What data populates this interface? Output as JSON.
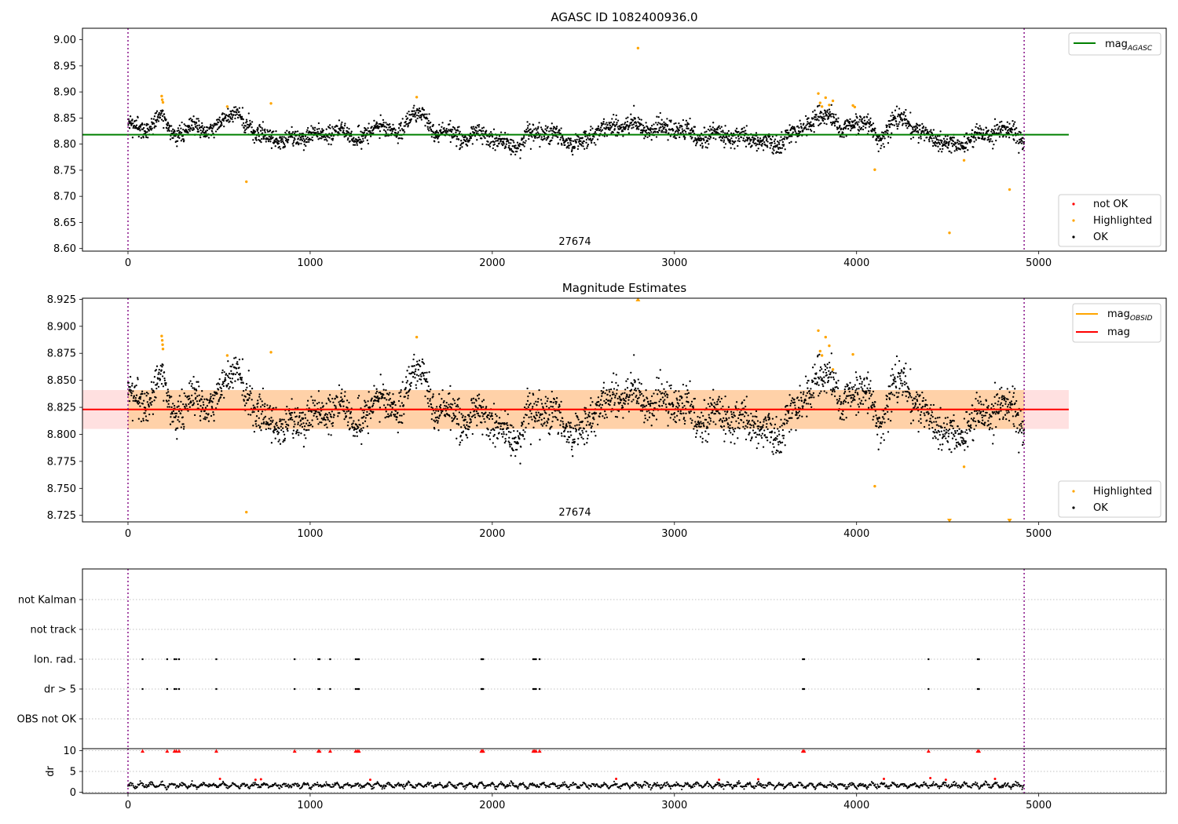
{
  "chart_data": [
    {
      "type": "scatter",
      "title": "AGASC ID 1082400936.0",
      "xlim": [
        -250,
        5700
      ],
      "ylim": [
        8.595,
        9.022
      ],
      "x_ticks": [
        "0",
        "1000",
        "2000",
        "3000",
        "4000",
        "5000"
      ],
      "y_ticks": [
        "8.60",
        "8.65",
        "8.70",
        "8.75",
        "8.80",
        "8.85",
        "8.90",
        "8.95",
        "9.00"
      ],
      "obsid_label": "27674",
      "obsid_bounds": [
        0,
        4920
      ],
      "grid": false,
      "reference_line": {
        "name": "mag",
        "subscript": "AGASC",
        "value": 8.818,
        "x_range": [
          -250,
          5165
        ],
        "color": "#008000"
      },
      "legend_top": {
        "placement": "top-right",
        "entries": [
          {
            "label": "mag",
            "sub": "AGASC",
            "kind": "line",
            "color": "#008000"
          }
        ]
      },
      "legend_bottom": {
        "placement": "bottom-right",
        "entries": [
          {
            "label": "not OK",
            "kind": "marker",
            "color": "#ff0000"
          },
          {
            "label": "Highlighted",
            "kind": "marker",
            "color": "#ffa500"
          },
          {
            "label": "OK",
            "kind": "marker",
            "color": "#000000"
          }
        ]
      },
      "ok_series": {
        "name": "OK",
        "color": "#000000",
        "x_range": [
          0,
          4920
        ],
        "profile_x": [
          0,
          100,
          180,
          240,
          300,
          380,
          460,
          540,
          600,
          660,
          720,
          800,
          900,
          1000,
          1080,
          1160,
          1240,
          1320,
          1400,
          1480,
          1560,
          1620,
          1680,
          1760,
          1840,
          1920,
          2000,
          2080,
          2140,
          2200,
          2280,
          2360,
          2440,
          2520,
          2600,
          2680,
          2760,
          2840,
          2920,
          3000,
          3080,
          3160,
          3240,
          3320,
          3400,
          3480,
          3560,
          3640,
          3720,
          3800,
          3860,
          3920,
          4000,
          4060,
          4120,
          4200,
          4260,
          4320,
          4400,
          4480,
          4560,
          4640,
          4720,
          4800,
          4860,
          4920
        ],
        "profile_y": [
          8.835,
          8.828,
          8.855,
          8.822,
          8.818,
          8.838,
          8.82,
          8.862,
          8.855,
          8.83,
          8.822,
          8.81,
          8.808,
          8.82,
          8.815,
          8.832,
          8.808,
          8.82,
          8.84,
          8.815,
          8.86,
          8.855,
          8.82,
          8.825,
          8.808,
          8.82,
          8.812,
          8.8,
          8.795,
          8.815,
          8.825,
          8.815,
          8.8,
          8.81,
          8.828,
          8.835,
          8.838,
          8.828,
          8.83,
          8.828,
          8.82,
          8.812,
          8.82,
          8.812,
          8.815,
          8.805,
          8.8,
          8.818,
          8.838,
          8.85,
          8.86,
          8.82,
          8.848,
          8.838,
          8.805,
          8.845,
          8.85,
          8.825,
          8.815,
          8.8,
          8.8,
          8.812,
          8.818,
          8.822,
          8.83,
          8.805
        ],
        "spread": 0.009
      },
      "highlighted": {
        "name": "Highlighted",
        "color": "#ffa500",
        "points": [
          [
            185,
            8.892
          ],
          [
            188,
            8.885
          ],
          [
            192,
            8.88
          ],
          [
            545,
            8.872
          ],
          [
            650,
            8.728
          ],
          [
            785,
            8.878
          ],
          [
            1585,
            8.89
          ],
          [
            2800,
            8.984
          ],
          [
            3790,
            8.897
          ],
          [
            3800,
            8.879
          ],
          [
            3810,
            8.872
          ],
          [
            3830,
            8.889
          ],
          [
            3850,
            8.875
          ],
          [
            3870,
            8.883
          ],
          [
            3980,
            8.874
          ],
          [
            3990,
            8.871
          ],
          [
            4100,
            8.751
          ],
          [
            4510,
            8.63
          ],
          [
            4590,
            8.769
          ],
          [
            4840,
            8.713
          ]
        ]
      }
    },
    {
      "type": "scatter",
      "title": "Magnitude Estimates",
      "xlim": [
        -250,
        5700
      ],
      "ylim": [
        8.719,
        8.926
      ],
      "x_ticks": [
        "0",
        "1000",
        "2000",
        "3000",
        "4000",
        "5000"
      ],
      "y_ticks": [
        "8.725",
        "8.750",
        "8.775",
        "8.800",
        "8.825",
        "8.850",
        "8.875",
        "8.900",
        "8.925"
      ],
      "obsid_label": "27674",
      "obsid_bounds": [
        0,
        4920
      ],
      "grid": false,
      "mag_line": {
        "name": "mag",
        "value": 8.823,
        "x_range": [
          -250,
          5165
        ],
        "color": "#ff0000"
      },
      "mag_band": {
        "low": 8.805,
        "high": 8.841,
        "x_range": [
          -250,
          5165
        ],
        "color": "#ff0000"
      },
      "obsid_mag": {
        "name": "mag",
        "subscript": "OBSID",
        "value": 8.823,
        "low": 8.805,
        "high": 8.841,
        "x_range": [
          0,
          4920
        ],
        "color": "#ffa500"
      },
      "legend_top": {
        "placement": "top-right",
        "entries": [
          {
            "label": "mag",
            "sub": "OBSID",
            "kind": "line",
            "color": "#ffa500"
          },
          {
            "label": "mag",
            "sub": "",
            "kind": "line",
            "color": "#ff0000"
          }
        ]
      },
      "legend_bottom": {
        "placement": "bottom-right",
        "entries": [
          {
            "label": "Highlighted",
            "kind": "marker",
            "color": "#ffa500"
          },
          {
            "label": "OK",
            "kind": "marker",
            "color": "#000000"
          }
        ]
      },
      "ok_series": {
        "name": "OK",
        "color": "#000000",
        "x_range": [
          0,
          4920
        ],
        "profile_x": [
          0,
          100,
          180,
          240,
          300,
          380,
          460,
          540,
          600,
          660,
          720,
          800,
          900,
          1000,
          1080,
          1160,
          1240,
          1320,
          1400,
          1480,
          1560,
          1620,
          1680,
          1760,
          1840,
          1920,
          2000,
          2080,
          2140,
          2200,
          2280,
          2360,
          2440,
          2520,
          2600,
          2680,
          2760,
          2840,
          2920,
          3000,
          3080,
          3160,
          3240,
          3320,
          3400,
          3480,
          3560,
          3640,
          3720,
          3800,
          3860,
          3920,
          4000,
          4060,
          4120,
          4200,
          4260,
          4320,
          4400,
          4480,
          4560,
          4640,
          4720,
          4800,
          4860,
          4920
        ],
        "profile_y": [
          8.835,
          8.828,
          8.855,
          8.822,
          8.818,
          8.838,
          8.82,
          8.862,
          8.855,
          8.83,
          8.822,
          8.81,
          8.808,
          8.82,
          8.815,
          8.832,
          8.808,
          8.82,
          8.84,
          8.815,
          8.86,
          8.855,
          8.82,
          8.825,
          8.808,
          8.82,
          8.812,
          8.8,
          8.795,
          8.815,
          8.825,
          8.815,
          8.8,
          8.81,
          8.828,
          8.835,
          8.838,
          8.828,
          8.83,
          8.828,
          8.82,
          8.812,
          8.82,
          8.812,
          8.815,
          8.805,
          8.8,
          8.818,
          8.838,
          8.85,
          8.86,
          8.82,
          8.848,
          8.838,
          8.805,
          8.845,
          8.85,
          8.825,
          8.815,
          8.8,
          8.8,
          8.812,
          8.818,
          8.822,
          8.83,
          8.805
        ],
        "spread": 0.009
      },
      "highlighted": {
        "name": "Highlighted",
        "color": "#ffa500",
        "points": [
          [
            185,
            8.891
          ],
          [
            188,
            8.887
          ],
          [
            190,
            8.883
          ],
          [
            192,
            8.879
          ],
          [
            545,
            8.873
          ],
          [
            650,
            8.728
          ],
          [
            785,
            8.876
          ],
          [
            1585,
            8.89
          ],
          [
            3790,
            8.896
          ],
          [
            3800,
            8.877
          ],
          [
            3810,
            8.873
          ],
          [
            3830,
            8.89
          ],
          [
            3850,
            8.882
          ],
          [
            3870,
            8.86
          ],
          [
            3980,
            8.874
          ],
          [
            4100,
            8.752
          ],
          [
            4590,
            8.77
          ]
        ],
        "clipped_points": [
          [
            2800,
            8.926
          ],
          [
            4510,
            8.719
          ],
          [
            4840,
            8.719
          ]
        ]
      }
    },
    {
      "type": "scatter",
      "title": "",
      "xlim": [
        -250,
        5700
      ],
      "x_ticks": [
        "0",
        "1000",
        "2000",
        "3000",
        "4000",
        "5000"
      ],
      "obsid_bounds": [
        0,
        4920
      ],
      "flag_rows": [
        "not Kalman",
        "not track",
        "Ion. rad.",
        "dr > 5",
        "OBS not OK"
      ],
      "flag_events": {
        "Ion. rad.": [
          80,
          215,
          255,
          265,
          280,
          485,
          915,
          1045,
          1052,
          1110,
          1250,
          1260,
          1268,
          1940,
          1945,
          1950,
          2225,
          2232,
          2240,
          2260,
          3705,
          3712,
          4395,
          4665,
          4672
        ],
        "dr > 5": [
          80,
          215,
          255,
          265,
          280,
          485,
          915,
          1045,
          1052,
          1110,
          1250,
          1260,
          1268,
          1940,
          1945,
          1950,
          2225,
          2232,
          2240,
          2260,
          3705,
          3712,
          4395,
          4665,
          4672
        ]
      }
    },
    {
      "type": "scatter",
      "ylabel": "dr",
      "xlim": [
        -250,
        5700
      ],
      "ylim": [
        -0.3,
        10.5
      ],
      "y_ticks": [
        "0",
        "5",
        "10"
      ],
      "x_ticks": [
        "0",
        "1000",
        "2000",
        "3000",
        "4000",
        "5000"
      ],
      "grid": true,
      "typical_dr": [
        0.8,
        2.5
      ],
      "clipped_dr": {
        "value": 10,
        "x": [
          80,
          215,
          255,
          265,
          280,
          485,
          915,
          1045,
          1052,
          1110,
          1250,
          1260,
          1268,
          1940,
          1945,
          1950,
          2225,
          2232,
          2240,
          2260,
          3705,
          3712,
          4395,
          4665,
          4672
        ]
      },
      "elevated_dr": [
        [
          505,
          3.2
        ],
        [
          700,
          3.0
        ],
        [
          730,
          3.1
        ],
        [
          1330,
          3.0
        ],
        [
          2680,
          3.2
        ],
        [
          3245,
          3.0
        ],
        [
          3460,
          3.1
        ],
        [
          4150,
          3.2
        ],
        [
          4405,
          3.4
        ],
        [
          4490,
          3.0
        ],
        [
          4760,
          3.2
        ]
      ]
    }
  ]
}
